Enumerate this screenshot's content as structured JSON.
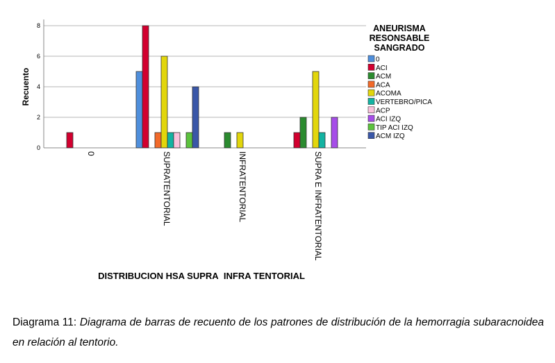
{
  "chart_data": {
    "type": "bar",
    "title": "",
    "xlabel": "DISTRIBUCION HSA SUPRA_INFRA TENTORIAL",
    "ylabel": "Recuento",
    "ylim": [
      0,
      8
    ],
    "yticks": [
      0,
      2,
      4,
      6,
      8
    ],
    "grid": true,
    "legend_title": "ANEURISMA RESONSABLE SANGRADO",
    "legend_position": "right",
    "categories": [
      "0",
      "SUPRATENTORIAL",
      "INFRATENTORIAL",
      "SUPRA E INFRATENTORIAL"
    ],
    "series": [
      {
        "name": "0",
        "color": "#4f8fdc",
        "values": [
          0,
          5,
          0,
          0
        ]
      },
      {
        "name": "ACI",
        "color": "#d2002f",
        "values": [
          1,
          8,
          0,
          1
        ]
      },
      {
        "name": "ACM",
        "color": "#2b8b2f",
        "values": [
          0,
          0,
          1,
          2
        ]
      },
      {
        "name": "ACA",
        "color": "#f26a2a",
        "values": [
          0,
          1,
          0,
          0
        ]
      },
      {
        "name": "ACOMA",
        "color": "#e2d60c",
        "values": [
          0,
          6,
          1,
          5
        ]
      },
      {
        "name": "VERTEBRO/PICA",
        "color": "#13b3a2",
        "values": [
          0,
          1,
          0,
          1
        ]
      },
      {
        "name": "ACP",
        "color": "#f9c2dc",
        "values": [
          0,
          1,
          0,
          0
        ]
      },
      {
        "name": "ACI IZQ",
        "color": "#a64de8",
        "values": [
          0,
          0,
          0,
          2
        ]
      },
      {
        "name": "TIP ACI IZQ",
        "color": "#5cc23d",
        "values": [
          0,
          1,
          0,
          0
        ]
      },
      {
        "name": "ACM IZQ",
        "color": "#3a57a8",
        "values": [
          0,
          4,
          0,
          0
        ]
      }
    ]
  },
  "caption": {
    "prefix": "Diagrama 11: ",
    "text": "Diagrama de barras de recuento de los patrones de distribución de la hemorragia subaracnoidea en relación al tentorio."
  }
}
